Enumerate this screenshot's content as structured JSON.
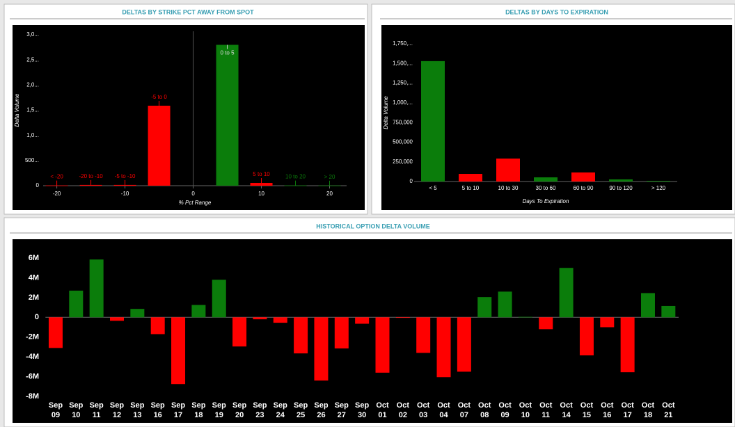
{
  "chart_data": [
    {
      "type": "bar",
      "title": "DELTAS BY STRIKE PCT AWAY FROM SPOT",
      "x": [
        -20,
        -15,
        -10,
        -5,
        5,
        10,
        15,
        20
      ],
      "categories": [
        "< -20",
        "-20 to -10",
        "-5 to -10",
        "-5 to 0",
        "0 to 5",
        "5 to 10",
        "10 to 20",
        "> 20"
      ],
      "values": [
        5,
        15,
        15,
        1590,
        2800,
        55,
        5,
        3
      ],
      "colors": [
        "#ff0000",
        "#ff0000",
        "#ff0000",
        "#ff0000",
        "#0b7d0b",
        "#ff0000",
        "#0b7d0b",
        "#0b7d0b"
      ],
      "xlim": [
        -22,
        22.5
      ],
      "xticks": [
        -20,
        -10,
        0,
        10,
        20
      ],
      "ylim": [
        0,
        3000
      ],
      "yticks": [
        0,
        {
          "value": 500,
          "label": "500..."
        },
        {
          "value": 1000,
          "label": "1,0..."
        },
        {
          "value": 1500,
          "label": "1,5..."
        },
        {
          "value": 2000,
          "label": "2,0..."
        },
        {
          "value": 2500,
          "label": "2,5..."
        },
        {
          "value": 3000,
          "label": "3,0..."
        }
      ],
      "xlabel": "% Pct Range",
      "ylabel": "Delta Volume",
      "zero_line": true
    },
    {
      "type": "bar",
      "title": "DELTAS BY DAYS TO EXPIRATION",
      "categories": [
        "< 5",
        "5 to 10",
        "10 to 30",
        "30 to 60",
        "60 to 90",
        "90 to 120",
        "> 120"
      ],
      "values": [
        1530000,
        97000,
        292000,
        53000,
        115000,
        27000,
        9000
      ],
      "colors": [
        "#0b7d0b",
        "#ff0000",
        "#ff0000",
        "#0b7d0b",
        "#ff0000",
        "#0b7d0b",
        "#0b7d0b"
      ],
      "ylim": [
        0,
        1750000
      ],
      "yticks": [
        0,
        {
          "value": 250000,
          "label": "250,000"
        },
        {
          "value": 500000,
          "label": "500,000"
        },
        {
          "value": 750000,
          "label": "750,000"
        },
        {
          "value": 1000000,
          "label": "1,000,..."
        },
        {
          "value": 1250000,
          "label": "1,250,..."
        },
        {
          "value": 1500000,
          "label": "1,500,..."
        },
        {
          "value": 1750000,
          "label": "1,750,..."
        }
      ],
      "xlabel": "Days To Expiration",
      "ylabel": "Delta Volume"
    },
    {
      "type": "bar",
      "title": "HISTORICAL OPTION DELTA VOLUME",
      "categories": [
        "Sep 09",
        "Sep 10",
        "Sep 11",
        "Sep 12",
        "Sep 13",
        "Sep 16",
        "Sep 17",
        "Sep 18",
        "Sep 19",
        "Sep 20",
        "Sep 23",
        "Sep 24",
        "Sep 25",
        "Sep 26",
        "Sep 27",
        "Sep 30",
        "Oct 01",
        "Oct 02",
        "Oct 03",
        "Oct 04",
        "Oct 07",
        "Oct 08",
        "Oct 09",
        "Oct 10",
        "Oct 11",
        "Oct 14",
        "Oct 15",
        "Oct 16",
        "Oct 17",
        "Oct 18",
        "Oct 21"
      ],
      "values": [
        -3.1,
        2.7,
        5.85,
        -0.35,
        0.85,
        -1.7,
        -6.75,
        1.25,
        3.8,
        -2.95,
        -0.2,
        -0.55,
        -3.65,
        -6.4,
        -3.15,
        -0.65,
        -5.6,
        -0.05,
        -3.6,
        -6.05,
        -5.5,
        2.05,
        2.6,
        0.05,
        -1.2,
        5.0,
        -3.85,
        -1.0,
        -5.55,
        2.45,
        1.15
      ],
      "colors": [
        "#ff0000",
        "#0b7d0b",
        "#0b7d0b",
        "#ff0000",
        "#0b7d0b",
        "#ff0000",
        "#ff0000",
        "#0b7d0b",
        "#0b7d0b",
        "#ff0000",
        "#ff0000",
        "#ff0000",
        "#ff0000",
        "#ff0000",
        "#ff0000",
        "#ff0000",
        "#ff0000",
        "#ff0000",
        "#ff0000",
        "#ff0000",
        "#ff0000",
        "#0b7d0b",
        "#0b7d0b",
        "#0b7d0b",
        "#ff0000",
        "#0b7d0b",
        "#ff0000",
        "#ff0000",
        "#ff0000",
        "#0b7d0b",
        "#0b7d0b"
      ],
      "ylim": [
        -8,
        6
      ],
      "yticks": [
        {
          "value": -8,
          "label": "-8M"
        },
        {
          "value": -6,
          "label": "-6M"
        },
        {
          "value": -4,
          "label": "-4M"
        },
        {
          "value": -2,
          "label": "-2M"
        },
        0,
        {
          "value": 2,
          "label": "2M"
        },
        {
          "value": 4,
          "label": "4M"
        },
        {
          "value": 6,
          "label": "6M"
        }
      ]
    }
  ]
}
